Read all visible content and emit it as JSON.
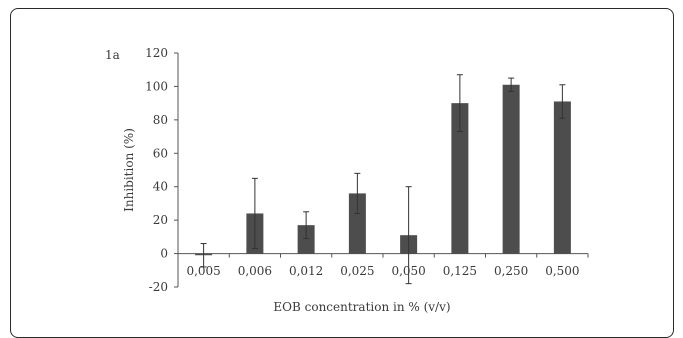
{
  "chart_data": {
    "type": "bar",
    "panel_label": "1a",
    "categories": [
      "0,005",
      "0,006",
      "0,012",
      "0,025",
      "0,050",
      "0,125",
      "0,250",
      "0,500"
    ],
    "values": [
      -1,
      24,
      17,
      36,
      11,
      90,
      101,
      91
    ],
    "error_upper": [
      7,
      21,
      8,
      12,
      29,
      17,
      4,
      10
    ],
    "error_lower": [
      7,
      21,
      8,
      12,
      29,
      17,
      4,
      10
    ],
    "xlabel": "EOB concentration in % (v/v)",
    "ylabel": "Inhibition (%)",
    "ylim": [
      -20,
      120
    ],
    "yticks": [
      "-20",
      "0",
      "20",
      "40",
      "60",
      "80",
      "100",
      "120"
    ],
    "grid": false,
    "bar_color": "#4d4d4d"
  }
}
